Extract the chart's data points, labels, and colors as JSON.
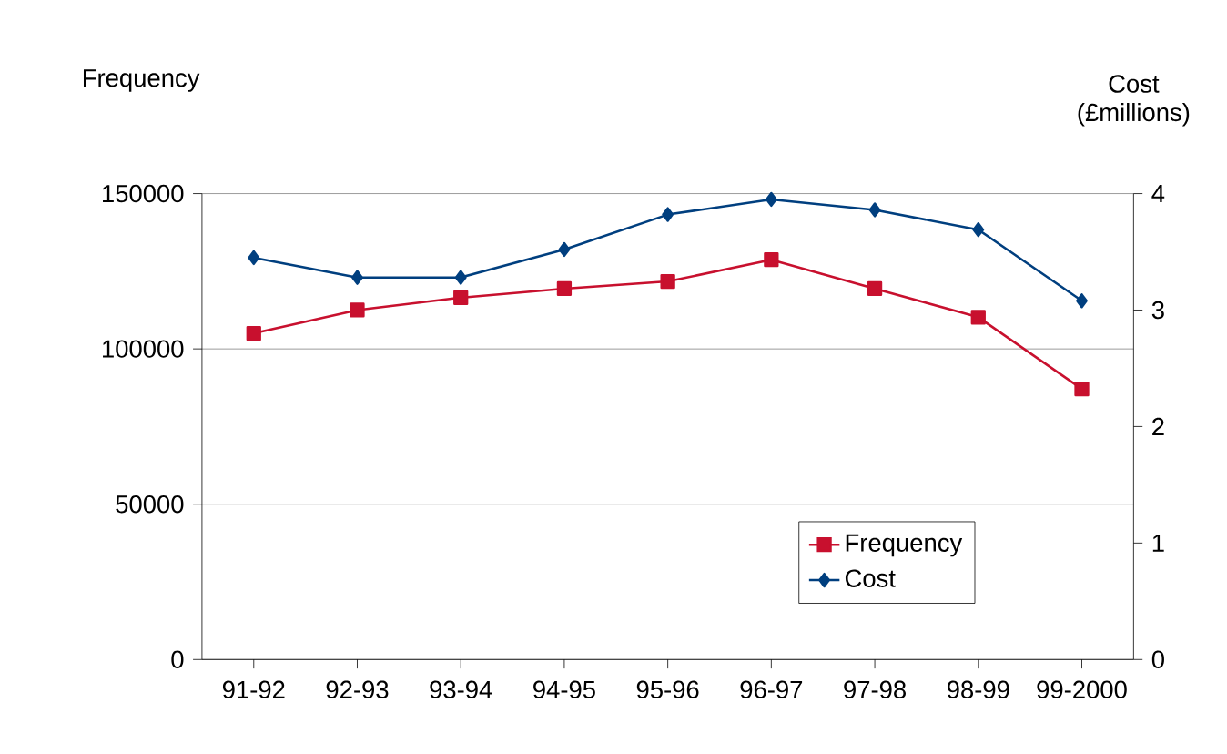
{
  "chart_data": {
    "type": "line",
    "ylabel": "Frequency",
    "y2label": "Cost (£millions)",
    "categories": [
      "91-92",
      "92-93",
      "93-94",
      "94-95",
      "95-96",
      "96-97",
      "97-98",
      "98-99",
      "99-2000"
    ],
    "series": [
      {
        "name": "Frequency",
        "color": "#c8102e",
        "marker": "square",
        "values": [
          105000,
          112500,
          116500,
          119400,
          121700,
          128700,
          119400,
          110200,
          87100
        ]
      },
      {
        "name": "Cost",
        "color": "#003f7f",
        "marker": "diamond",
        "axis": "y2",
        "values": [
          3.45,
          3.28,
          3.28,
          3.52,
          3.82,
          3.95,
          3.86,
          3.69,
          3.08
        ]
      }
    ],
    "ylim": [
      0,
      150000
    ],
    "yticks": [
      0,
      50000,
      100000,
      150000
    ],
    "y2lim": [
      0,
      4
    ],
    "y2ticks": [
      0,
      1,
      2,
      3,
      4
    ],
    "grid": "y",
    "legend": "bottom right",
    "line_style": "solid"
  }
}
